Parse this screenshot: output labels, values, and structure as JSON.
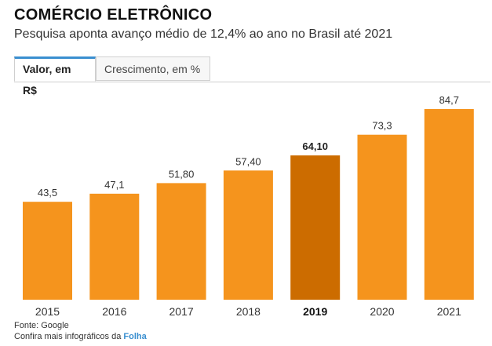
{
  "header": {
    "title": "COMÉRCIO ELETRÔNICO",
    "subtitle": "Pesquisa aponta avanço médio de 12,4% ao ano no Brasil até 2021"
  },
  "tabs": [
    {
      "label": "Valor, em R$",
      "active": true
    },
    {
      "label": "Crescimento, em %",
      "active": false
    }
  ],
  "footer": {
    "source": "Fonte: Google",
    "more_prefix": "Confira mais infográficos da ",
    "more_link": "Folha"
  },
  "colors": {
    "bar": "#f5941d",
    "bar_highlight": "#cc6c00",
    "tab_accent": "#3a8fd0"
  },
  "chart_data": {
    "type": "bar",
    "categories": [
      "2015",
      "2016",
      "2017",
      "2018",
      "2019",
      "2020",
      "2021"
    ],
    "values": [
      43.5,
      47.1,
      51.8,
      57.4,
      64.1,
      73.3,
      84.7
    ],
    "data_labels": [
      "43,5",
      "47,1",
      "51,80",
      "57,40",
      "64,10",
      "73,3",
      "84,7"
    ],
    "highlight_index": 4,
    "ylim": [
      0,
      90
    ],
    "grid": false,
    "title": "",
    "xlabel": "",
    "ylabel": ""
  }
}
